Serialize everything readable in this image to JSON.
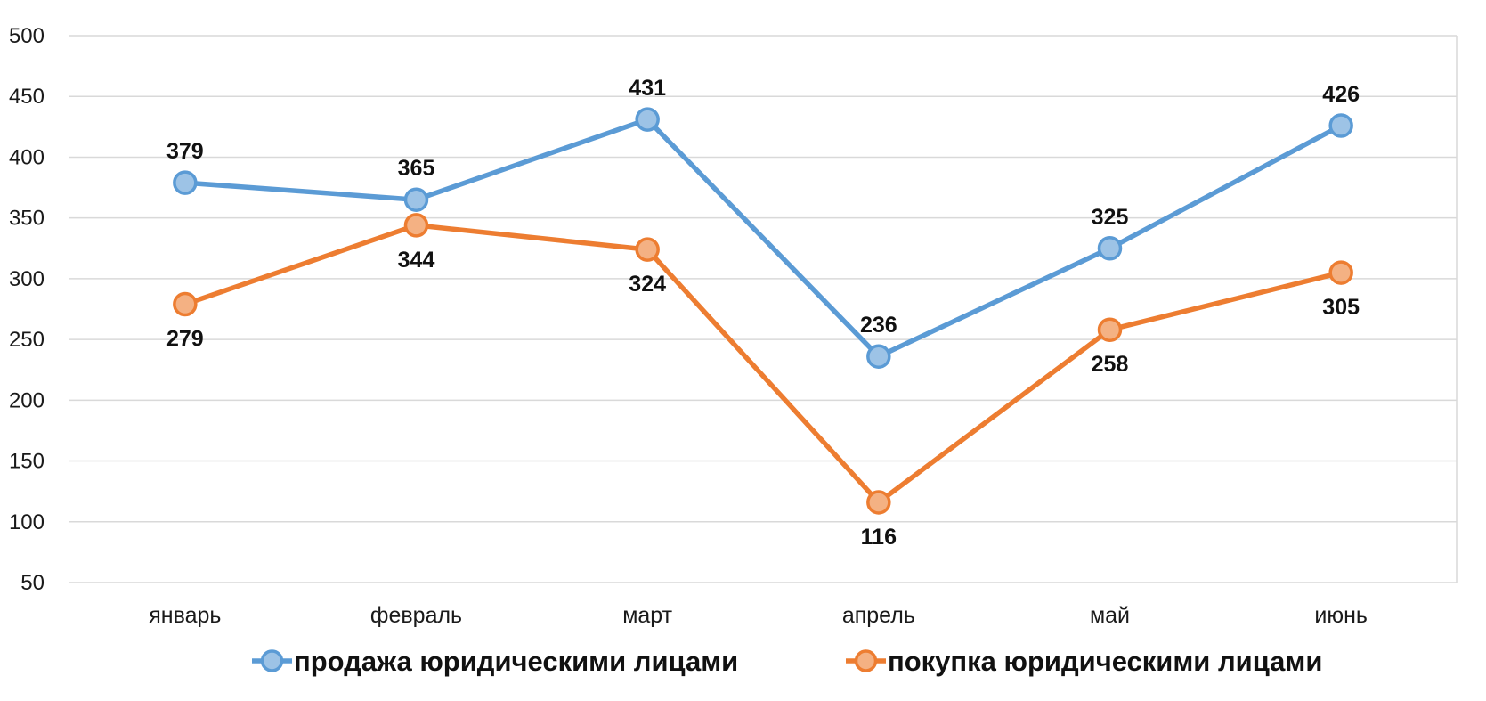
{
  "chart_data": {
    "type": "line",
    "title": "",
    "xlabel": "",
    "ylabel": "",
    "categories": [
      "январь",
      "февраль",
      "март",
      "апрель",
      "май",
      "июнь"
    ],
    "ylim": [
      50,
      500
    ],
    "yticks": [
      50,
      100,
      150,
      200,
      250,
      300,
      350,
      400,
      450,
      500
    ],
    "grid": true,
    "legend_position": "bottom",
    "series": [
      {
        "name": "продажа юридическими лицами",
        "values": [
          379,
          365,
          431,
          236,
          325,
          426
        ],
        "color": "#5b9bd5",
        "marker_fill": "#9dc3e6",
        "label_position": "above"
      },
      {
        "name": "покупка юридическими лицами",
        "values": [
          279,
          344,
          324,
          116,
          258,
          305
        ],
        "color": "#ed7d31",
        "marker_fill": "#f4b183",
        "label_position": "below"
      }
    ]
  }
}
